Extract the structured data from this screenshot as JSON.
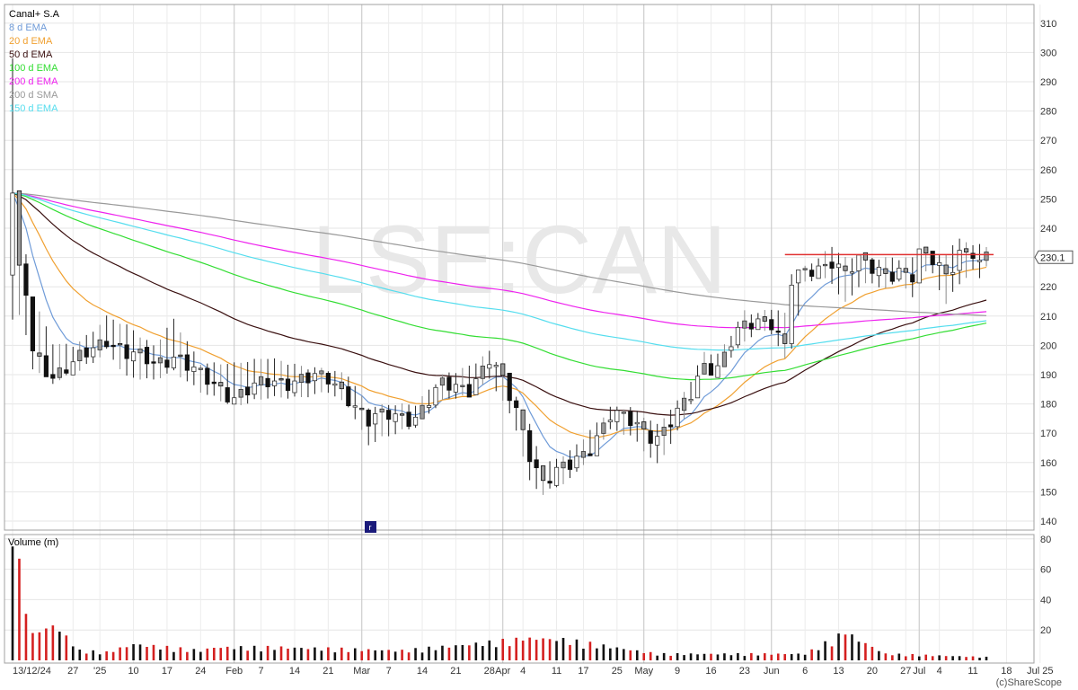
{
  "chart_data": [
    {
      "type": "candlestick",
      "title": "Canal+ S.A",
      "watermark": "LSE:CAN",
      "price_label": "230.1",
      "ylim": [
        135,
        315
      ],
      "y_ticks": [
        140,
        150,
        160,
        170,
        180,
        190,
        200,
        210,
        220,
        230,
        240,
        250,
        260,
        270,
        280,
        290,
        300,
        310
      ],
      "date_ticks": [
        {
          "label": "13/12/24",
          "i": 0
        },
        {
          "label": "27",
          "i": 9
        },
        {
          "label": "'25",
          "i": 13
        },
        {
          "label": "10",
          "i": 18
        },
        {
          "label": "17",
          "i": 23
        },
        {
          "label": "24",
          "i": 28
        },
        {
          "label": "Feb",
          "i": 33
        },
        {
          "label": "7",
          "i": 37
        },
        {
          "label": "14",
          "i": 42
        },
        {
          "label": "21",
          "i": 47
        },
        {
          "label": "Mar",
          "i": 52
        },
        {
          "label": "7",
          "i": 56
        },
        {
          "label": "14",
          "i": 61
        },
        {
          "label": "21",
          "i": 66
        },
        {
          "label": "28",
          "i": 71
        },
        {
          "label": "Apr",
          "i": 73
        },
        {
          "label": "4",
          "i": 76
        },
        {
          "label": "11",
          "i": 81
        },
        {
          "label": "17",
          "i": 85
        },
        {
          "label": "25",
          "i": 90
        },
        {
          "label": "May",
          "i": 94
        },
        {
          "label": "9",
          "i": 99
        },
        {
          "label": "16",
          "i": 104
        },
        {
          "label": "23",
          "i": 109
        },
        {
          "label": "Jun",
          "i": 113
        },
        {
          "label": "6",
          "i": 118
        },
        {
          "label": "13",
          "i": 123
        },
        {
          "label": "20",
          "i": 128
        },
        {
          "label": "27",
          "i": 133
        },
        {
          "label": "Jul",
          "i": 135
        },
        {
          "label": "4",
          "i": 138
        },
        {
          "label": "11",
          "i": 143
        },
        {
          "label": "18",
          "i": 148
        },
        {
          "label": "Jul 25",
          "i": 153
        }
      ],
      "grid_months_i": [
        33,
        52,
        73,
        94,
        113,
        135
      ],
      "resistance_level": 231,
      "resistance_from_i": 115,
      "bars": 146,
      "ohlc_keypoints": [
        [
          0,
          252,
          298,
          210
        ],
        [
          1,
          224,
          235,
          211
        ],
        [
          2,
          218,
          230,
          204
        ],
        [
          3,
          198,
          216,
          193
        ],
        [
          6,
          190,
          200,
          188
        ],
        [
          9,
          193,
          199,
          191
        ],
        [
          12,
          199,
          204,
          195
        ],
        [
          14,
          203,
          209,
          199
        ],
        [
          17,
          197,
          206,
          190
        ],
        [
          21,
          194,
          199,
          189
        ],
        [
          24,
          197,
          208,
          192
        ],
        [
          28,
          189,
          193,
          185
        ],
        [
          33,
          183,
          193,
          180
        ],
        [
          38,
          187,
          195,
          183
        ],
        [
          43,
          189,
          192,
          183
        ],
        [
          47,
          188,
          191,
          185
        ],
        [
          50,
          183,
          189,
          180
        ],
        [
          53,
          174,
          178,
          167
        ],
        [
          56,
          176,
          179,
          170
        ],
        [
          60,
          176,
          179,
          173
        ],
        [
          64,
          186,
          189,
          182
        ],
        [
          68,
          186,
          192,
          184
        ],
        [
          71,
          195,
          197,
          189
        ],
        [
          73,
          187,
          191,
          182
        ],
        [
          75,
          178,
          182,
          172
        ],
        [
          77,
          164,
          172,
          154
        ],
        [
          79,
          153,
          158,
          150
        ],
        [
          83,
          159,
          163,
          155
        ],
        [
          86,
          166,
          170,
          163
        ],
        [
          89,
          176,
          178,
          172
        ],
        [
          92,
          174,
          178,
          170
        ],
        [
          96,
          169,
          172,
          160
        ],
        [
          99,
          176,
          180,
          171
        ],
        [
          101,
          183,
          187,
          181
        ],
        [
          103,
          194,
          197,
          191
        ],
        [
          105,
          193,
          196,
          191
        ],
        [
          107,
          201,
          203,
          197
        ],
        [
          109,
          206,
          211,
          202
        ],
        [
          111,
          208,
          210,
          206
        ],
        [
          113,
          209,
          212,
          205
        ],
        [
          115,
          200,
          210,
          196
        ],
        [
          116,
          222,
          224,
          200
        ],
        [
          118,
          224,
          226,
          222
        ],
        [
          120,
          226,
          229,
          224
        ],
        [
          122,
          230,
          233,
          222
        ],
        [
          124,
          225,
          229,
          215
        ],
        [
          126,
          228,
          229,
          221
        ],
        [
          128,
          226,
          229,
          222
        ],
        [
          130,
          225,
          229,
          220
        ],
        [
          132,
          226,
          229,
          223
        ],
        [
          134,
          223,
          229,
          217
        ],
        [
          135,
          230,
          231,
          227
        ],
        [
          137,
          229,
          231,
          225
        ],
        [
          139,
          225,
          230,
          215
        ],
        [
          141,
          232,
          236,
          222
        ],
        [
          143,
          231,
          233,
          226
        ],
        [
          144,
          226,
          234,
          224
        ],
        [
          145,
          230,
          233,
          228
        ]
      ],
      "series": [
        {
          "name": "8 d  EMA",
          "color": "#6f9bd8",
          "values": "computed"
        },
        {
          "name": "20 d  EMA",
          "color": "#f0a030",
          "values": "computed"
        },
        {
          "name": "50 d  EMA",
          "color": "#3a1010",
          "values": "computed"
        },
        {
          "name": "100 d  EMA",
          "color": "#33dd33",
          "values": "computed"
        },
        {
          "name": "200 d  EMA",
          "color": "#ee22ee",
          "values": "computed"
        },
        {
          "name": "200 d  SMA",
          "color": "#999999",
          "values": "computed"
        },
        {
          "name": "150 d  EMA",
          "color": "#55ddee",
          "values": "computed"
        }
      ]
    },
    {
      "type": "bar",
      "title": "Volume (m)",
      "ylim": [
        0,
        80
      ],
      "y_ticks": [
        20,
        40,
        60,
        80
      ],
      "volume_keypoints": [
        [
          0,
          75
        ],
        [
          3,
          18
        ],
        [
          5,
          21
        ],
        [
          6,
          23
        ],
        [
          10,
          6
        ],
        [
          14,
          5
        ],
        [
          18,
          10
        ],
        [
          28,
          6
        ],
        [
          30,
          8
        ],
        [
          40,
          8
        ],
        [
          58,
          6
        ],
        [
          76,
          13
        ],
        [
          80,
          14
        ],
        [
          96,
          4
        ],
        [
          118,
          4
        ],
        [
          124,
          17
        ],
        [
          130,
          4
        ],
        [
          145,
          2
        ]
      ]
    }
  ],
  "credit": "(c)ShareScope"
}
